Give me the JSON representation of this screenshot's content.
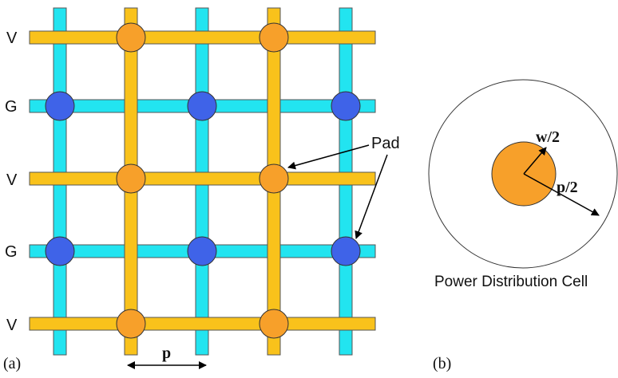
{
  "colors": {
    "ground_rail": "#22e4f0",
    "power_rail": "#f9c21b",
    "ground_pad": "#3f63e8",
    "power_pad": "#f7a02a",
    "outline": "#555555"
  },
  "panel_a": {
    "row_labels": [
      "V",
      "G",
      "V",
      "G",
      "V"
    ],
    "pad_label": "Pad",
    "pitch_label": "p",
    "panel_label": "(a)"
  },
  "panel_b": {
    "radius_label": "w/2",
    "half_pitch_label": "p/2",
    "caption": "Power Distribution Cell",
    "panel_label": "(b)"
  }
}
